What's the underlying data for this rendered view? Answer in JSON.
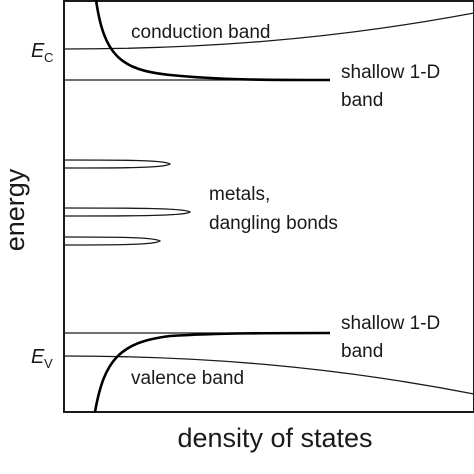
{
  "figure": {
    "labels": {
      "conduction_band": "conduction band",
      "shallow_band_upper_line1": "shallow 1-D",
      "shallow_band_upper_line2": "band",
      "metals_line1": "metals,",
      "metals_line2": "dangling bonds",
      "shallow_band_lower_line1": "shallow 1-D",
      "shallow_band_lower_line2": "band",
      "valence_band": "valence band"
    },
    "energy_levels": {
      "ec_main": "E",
      "ec_sub": "C",
      "ev_main": "E",
      "ev_sub": "V"
    },
    "axes": {
      "x_label": "density of states",
      "y_label": "energy"
    }
  }
}
